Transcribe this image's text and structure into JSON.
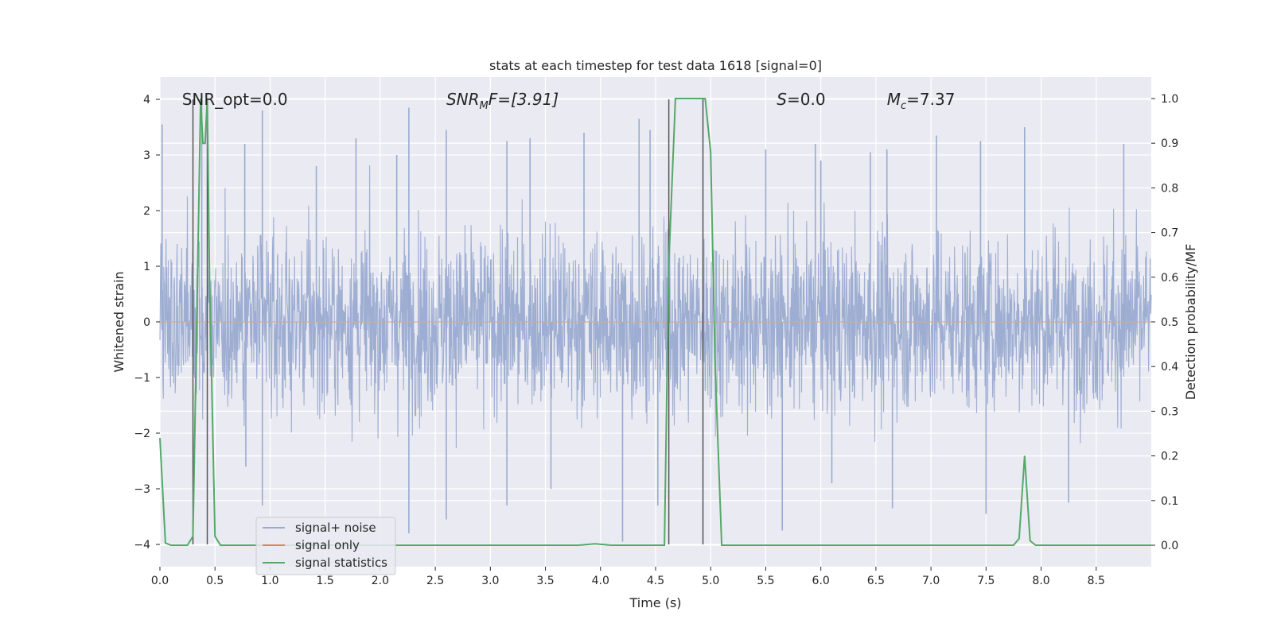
{
  "chart_data": {
    "type": "line",
    "title": "stats at each timestep for test data 1618 [signal=0]",
    "xlabel": "Time (s)",
    "ylabel": "Whitened strain",
    "y2label": "Detection probability/MF",
    "xlim": [
      0,
      9.0
    ],
    "ylim": [
      -4.4,
      4.4
    ],
    "y2lim": [
      -0.048,
      1.048
    ],
    "x_ticks": [
      0.0,
      0.5,
      1.0,
      1.5,
      2.0,
      2.5,
      3.0,
      3.5,
      4.0,
      4.5,
      5.0,
      5.5,
      6.0,
      6.5,
      7.0,
      7.5,
      8.0,
      8.5
    ],
    "x_tick_labels": [
      "0.0",
      "0.5",
      "1.0",
      "1.5",
      "2.0",
      "2.5",
      "3.0",
      "3.5",
      "4.0",
      "4.5",
      "5.0",
      "5.5",
      "6.0",
      "6.5",
      "7.0",
      "7.5",
      "8.0",
      "8.5"
    ],
    "y_ticks": [
      4,
      3,
      2,
      1,
      0,
      -1,
      -2,
      -3,
      -4
    ],
    "y_tick_labels": [
      "4",
      "3",
      "2",
      "1",
      "0",
      "−1",
      "−2",
      "−3",
      "−4"
    ],
    "y2_ticks": [
      1.0,
      0.9,
      0.8,
      0.7,
      0.6,
      0.5,
      0.4,
      0.3,
      0.2,
      0.1,
      0.0
    ],
    "y2_tick_labels": [
      "1.0",
      "0.9",
      "0.8",
      "0.7",
      "0.6",
      "0.5",
      "0.4",
      "0.3",
      "0.2",
      "0.1",
      "0.0"
    ],
    "grid": true,
    "legend_position": "lower-left",
    "annotations": [
      {
        "x": 0.2,
        "y": 4.0,
        "base": "SNR_opt=0.0"
      },
      {
        "x": 2.6,
        "y": 4.0,
        "base": "SNR",
        "sub": "M",
        "rest": "F=[3.91]",
        "italic": true
      },
      {
        "x": 5.6,
        "y": 4.0,
        "base": "S",
        "rest": "=0.0",
        "italic": true
      },
      {
        "x": 6.6,
        "y": 4.0,
        "base": "M",
        "sub": "c",
        "rest": "=7.37",
        "italic": true
      }
    ],
    "series": [
      {
        "name": "signal+ noise",
        "color": "#9aabd0",
        "axis": "left",
        "x_range": [
          0,
          9.0
        ],
        "approx_sigma": 0.8,
        "peaks": [
          {
            "x": 0.02,
            "y": 3.55
          },
          {
            "x": 0.38,
            "y": 4.05
          },
          {
            "x": 0.77,
            "y": 3.2
          },
          {
            "x": 0.78,
            "y": -2.6
          },
          {
            "x": 0.93,
            "y": 3.8
          },
          {
            "x": 0.93,
            "y": -3.3
          },
          {
            "x": 1.42,
            "y": 2.8
          },
          {
            "x": 1.78,
            "y": 3.3
          },
          {
            "x": 2.15,
            "y": 3.0
          },
          {
            "x": 2.26,
            "y": 3.85
          },
          {
            "x": 2.26,
            "y": -3.8
          },
          {
            "x": 2.6,
            "y": 3.45
          },
          {
            "x": 2.6,
            "y": -3.55
          },
          {
            "x": 3.15,
            "y": 3.25
          },
          {
            "x": 3.15,
            "y": -3.3
          },
          {
            "x": 3.36,
            "y": 3.3
          },
          {
            "x": 3.55,
            "y": -3.0
          },
          {
            "x": 3.85,
            "y": 3.4
          },
          {
            "x": 4.2,
            "y": -3.95
          },
          {
            "x": 4.35,
            "y": 3.65
          },
          {
            "x": 4.45,
            "y": 3.45
          },
          {
            "x": 4.52,
            "y": -3.3
          },
          {
            "x": 5.5,
            "y": 3.1
          },
          {
            "x": 5.65,
            "y": -3.75
          },
          {
            "x": 5.95,
            "y": 3.2
          },
          {
            "x": 6.0,
            "y": 2.9
          },
          {
            "x": 6.1,
            "y": -2.9
          },
          {
            "x": 6.45,
            "y": 3.05
          },
          {
            "x": 6.6,
            "y": 3.1
          },
          {
            "x": 6.65,
            "y": -3.35
          },
          {
            "x": 7.05,
            "y": 3.35
          },
          {
            "x": 7.45,
            "y": 3.25
          },
          {
            "x": 7.5,
            "y": -3.45
          },
          {
            "x": 7.85,
            "y": 3.5
          },
          {
            "x": 8.25,
            "y": -3.25
          },
          {
            "x": 8.75,
            "y": 3.2
          }
        ]
      },
      {
        "name": "signal only",
        "color": "#dd8452",
        "axis": "left",
        "points": []
      },
      {
        "name": "signal statistics",
        "color": "#55a868",
        "axis": "right",
        "x": [
          0.0,
          0.05,
          0.1,
          0.25,
          0.3,
          0.32,
          0.37,
          0.39,
          0.41,
          0.43,
          0.45,
          0.5,
          0.55,
          0.6,
          1.0,
          2.0,
          3.0,
          3.8,
          3.95,
          4.1,
          4.58,
          4.62,
          4.68,
          4.95,
          5.0,
          5.04,
          5.1,
          6.0,
          7.0,
          7.75,
          7.8,
          7.85,
          7.9,
          7.95,
          8.5,
          9.0
        ],
        "y": [
          0.24,
          0.005,
          0.0,
          0.0,
          0.02,
          0.3,
          1.0,
          0.9,
          0.9,
          1.0,
          0.6,
          0.02,
          0.0,
          0.0,
          0.0,
          0.0,
          0.0,
          0.0,
          0.003,
          0.0,
          0.0,
          0.63,
          1.0,
          1.0,
          0.88,
          0.4,
          0.0,
          0.0,
          0.0,
          0.0,
          0.015,
          0.2,
          0.01,
          0.0,
          0.0,
          0.0
        ]
      }
    ],
    "vertical_lines": [
      {
        "x": 0.3,
        "ymin": -4.0,
        "ymax": 4.0,
        "color": "#555555"
      },
      {
        "x": 0.43,
        "ymin": -4.0,
        "ymax": 4.0,
        "color": "#555555"
      },
      {
        "x": 4.62,
        "ymin": -4.0,
        "ymax": 4.0,
        "color": "#555555"
      },
      {
        "x": 4.93,
        "ymin": -4.0,
        "ymax": 4.0,
        "color": "#555555"
      }
    ],
    "horizontal_lines": [
      {
        "y": 0.0,
        "color": "#c8ad96"
      }
    ]
  }
}
